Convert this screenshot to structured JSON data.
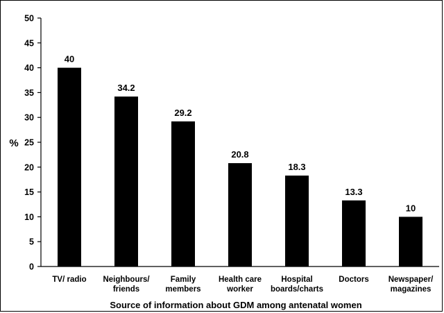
{
  "chart_data": {
    "type": "bar",
    "categories": [
      [
        "TV/ radio"
      ],
      [
        "Neighbours/",
        "friends"
      ],
      [
        "Family",
        "members"
      ],
      [
        "Health care",
        "worker"
      ],
      [
        "Hospital",
        "boards/charts"
      ],
      [
        "Doctors"
      ],
      [
        "Newspaper/",
        "magazines"
      ]
    ],
    "values": [
      40,
      34.2,
      29.2,
      20.8,
      18.3,
      13.3,
      10
    ],
    "data_labels": [
      "40",
      "34.2",
      "29.2",
      "20.8",
      "18.3",
      "13.3",
      "10"
    ],
    "ylabel": "%",
    "xlabel": "Source of information about GDM among antenatal women",
    "ylim": [
      0,
      50
    ],
    "yticks": [
      0,
      5,
      10,
      15,
      20,
      25,
      30,
      35,
      40,
      45,
      50
    ],
    "grid": false,
    "bar_color": "#000000"
  }
}
